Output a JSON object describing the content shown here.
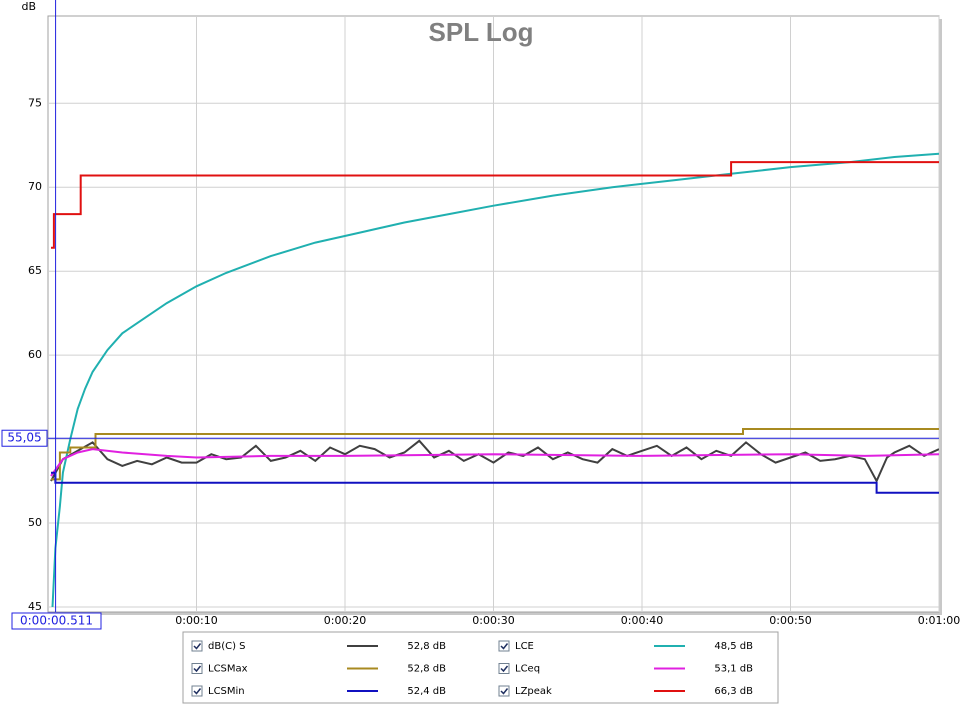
{
  "chart_data": {
    "type": "line",
    "title": "SPL Log",
    "y_label": "dB",
    "xlim": [
      0,
      60
    ],
    "ylim": [
      44.7,
      80.2
    ],
    "xticks": [
      {
        "value": 10,
        "label": "0:00:10"
      },
      {
        "value": 20,
        "label": "0:00:20"
      },
      {
        "value": 30,
        "label": "0:00:30"
      },
      {
        "value": 40,
        "label": "0:00:40"
      },
      {
        "value": 50,
        "label": "0:00:50"
      },
      {
        "value": 60,
        "label": "0:01:00"
      }
    ],
    "yticks": [
      45,
      50,
      55,
      60,
      65,
      70,
      75
    ],
    "grid": true,
    "cursor": {
      "x": 0.511,
      "x_label": "0:00:00.511",
      "y": 55.05,
      "y_label": "55,05"
    },
    "series": [
      {
        "name": "dB(C) S",
        "color": "#404040",
        "reading": "52,8 dB",
        "x": [
          0.2,
          1,
          2,
          3,
          4,
          5,
          6,
          7,
          8,
          9,
          10,
          11,
          12,
          13,
          14,
          15,
          16,
          17,
          18,
          19,
          20,
          21,
          22,
          23,
          24,
          25,
          26,
          27,
          28,
          29,
          30,
          31,
          32,
          33,
          34,
          35,
          36,
          37,
          38,
          39,
          40,
          41,
          42,
          43,
          44,
          45,
          46,
          47,
          48,
          49,
          50,
          51,
          52,
          53,
          54,
          55,
          55.8,
          56.5,
          57,
          58,
          59,
          60
        ],
        "values": [
          52.5,
          53.8,
          54.3,
          54.8,
          53.8,
          53.4,
          53.7,
          53.5,
          53.9,
          53.6,
          53.6,
          54.1,
          53.8,
          53.9,
          54.6,
          53.7,
          53.9,
          54.3,
          53.7,
          54.5,
          54.1,
          54.6,
          54.4,
          53.9,
          54.2,
          54.9,
          53.9,
          54.3,
          53.7,
          54.1,
          53.6,
          54.2,
          54.0,
          54.5,
          53.8,
          54.2,
          53.8,
          53.6,
          54.4,
          54.0,
          54.3,
          54.6,
          54.0,
          54.5,
          53.8,
          54.3,
          54.0,
          54.8,
          54.1,
          53.6,
          53.9,
          54.2,
          53.7,
          53.8,
          54.0,
          53.8,
          52.5,
          53.9,
          54.2,
          54.6,
          54.0,
          54.4
        ]
      },
      {
        "name": "LCE",
        "color": "#20b0b0",
        "reading": "48,5 dB",
        "x": [
          0.3,
          0.5,
          0.8,
          1,
          1.5,
          2,
          2.5,
          3,
          4,
          5,
          6,
          8,
          10,
          12,
          15,
          18,
          21,
          24,
          27,
          30,
          34,
          38,
          42,
          46,
          50,
          54,
          57,
          60
        ],
        "values": [
          45,
          48.5,
          51,
          53,
          55,
          56.8,
          58,
          59,
          60.3,
          61.3,
          61.9,
          63.1,
          64.1,
          64.9,
          65.9,
          66.7,
          67.3,
          67.9,
          68.4,
          68.9,
          69.5,
          70,
          70.4,
          70.8,
          71.2,
          71.5,
          71.8,
          72.0
        ]
      },
      {
        "name": "LCSMax",
        "color": "#a88a20",
        "reading": "52,8 dB",
        "x": [
          0.2,
          0.8,
          0.8,
          1.5,
          1.5,
          3.2,
          3.2,
          46.8,
          46.8,
          60
        ],
        "values": [
          52.6,
          52.6,
          54.2,
          54.2,
          54.5,
          54.5,
          55.3,
          55.3,
          55.6,
          55.6
        ]
      },
      {
        "name": "LCeq",
        "color": "#e020e0",
        "reading": "53,1 dB",
        "x": [
          0.2,
          1,
          2,
          3,
          5,
          8,
          10,
          15,
          20,
          30,
          40,
          50,
          55,
          60
        ],
        "values": [
          52.8,
          53.8,
          54.2,
          54.4,
          54.2,
          54.0,
          53.9,
          54.0,
          54.0,
          54.1,
          54.0,
          54.1,
          54.0,
          54.1
        ]
      },
      {
        "name": "LCSMin",
        "color": "#1010c0",
        "reading": "52,4 dB",
        "x": [
          0.2,
          0.5,
          0.5,
          55.8,
          55.8,
          60
        ],
        "values": [
          53,
          53,
          52.4,
          52.4,
          51.8,
          51.8
        ]
      },
      {
        "name": "LZpeak",
        "color": "#e01010",
        "reading": "66,3 dB",
        "x": [
          0.2,
          0.4,
          0.4,
          2.2,
          2.2,
          46,
          46,
          60
        ],
        "values": [
          66.4,
          66.4,
          68.4,
          68.4,
          70.7,
          70.7,
          71.5,
          71.5
        ]
      }
    ]
  }
}
